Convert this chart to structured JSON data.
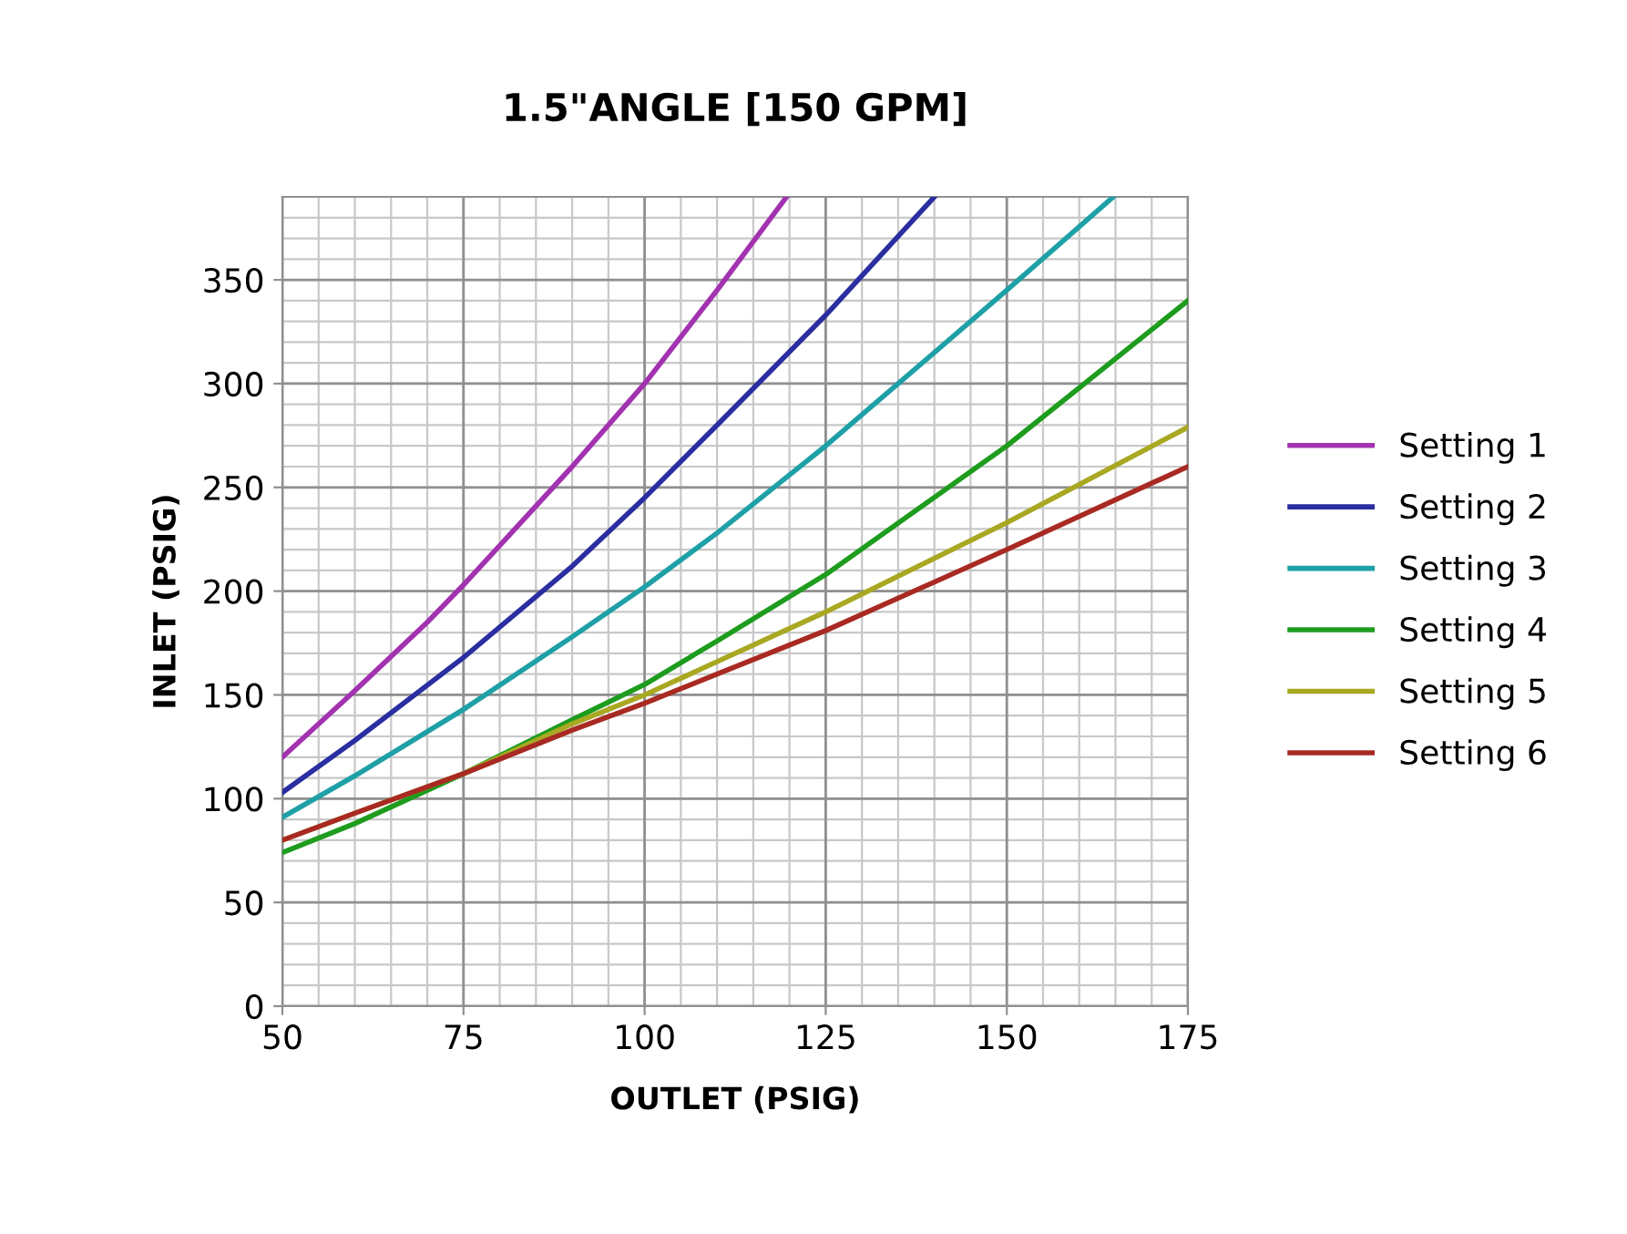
{
  "chart_data": {
    "type": "line",
    "title": "1.5\"ANGLE [150 GPM]",
    "xlabel": "OUTLET (PSIG)",
    "ylabel": "INLET (PSIG)",
    "xlim": [
      50,
      175
    ],
    "xticks": [
      50,
      75,
      100,
      125,
      150,
      175
    ],
    "ylim": [
      0,
      390
    ],
    "yticks": [
      0,
      50,
      100,
      150,
      200,
      250,
      300,
      350
    ],
    "grid": true,
    "legend": "right",
    "marker": "none",
    "line_style": "solid",
    "series": [
      {
        "name": "Setting 1",
        "color": "#a232b0",
        "x": [
          50,
          60,
          70,
          75,
          80,
          90,
          100,
          110,
          119.6
        ],
        "values": [
          120,
          152,
          185,
          203,
          222,
          260,
          300,
          345,
          390
        ]
      },
      {
        "name": "Setting 2",
        "color": "#2a2ea0",
        "x": [
          50,
          60,
          75,
          90,
          100,
          110,
          125,
          140
        ],
        "values": [
          103,
          128,
          168,
          212,
          245,
          280,
          333,
          390
        ]
      },
      {
        "name": "Setting 3",
        "color": "#1ea0a6",
        "x": [
          50,
          60,
          75,
          90,
          100,
          110,
          125,
          150,
          164.7
        ],
        "values": [
          91,
          111,
          143,
          178,
          202,
          228,
          270,
          345,
          390
        ]
      },
      {
        "name": "Setting 4",
        "color": "#1d9c1d",
        "x": [
          50,
          60,
          75,
          90,
          100,
          110,
          125,
          150,
          175
        ],
        "values": [
          74,
          88,
          112,
          138,
          155,
          176,
          208,
          270,
          340
        ]
      },
      {
        "name": "Setting 5",
        "color": "#a8a822",
        "x": [
          50,
          60,
          75,
          90,
          100,
          110,
          125,
          150,
          175
        ],
        "values": [
          80,
          93,
          112,
          136,
          150,
          166,
          190,
          233,
          279
        ]
      },
      {
        "name": "Setting 6",
        "color": "#a82a22",
        "x": [
          50,
          60,
          75,
          90,
          100,
          110,
          125,
          150,
          175
        ],
        "values": [
          80,
          93,
          112,
          133,
          146,
          160,
          181,
          220,
          260
        ]
      }
    ]
  }
}
